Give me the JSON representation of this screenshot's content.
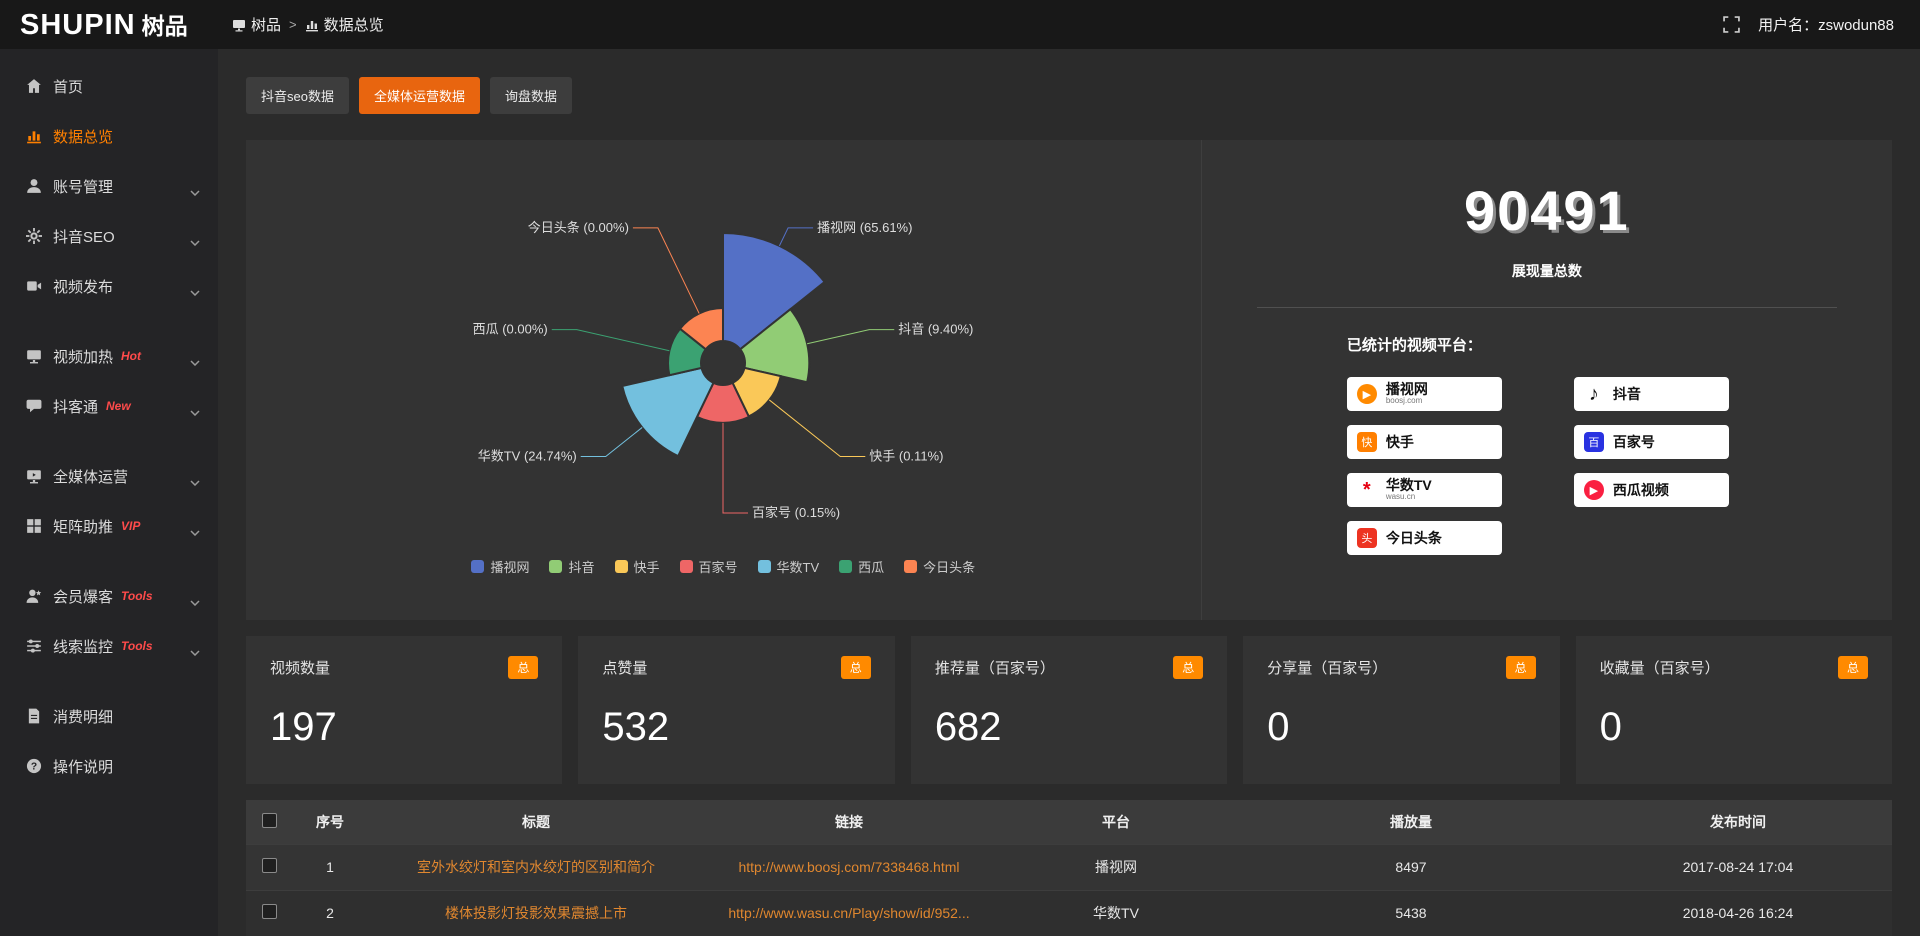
{
  "header": {
    "logo": {
      "latin": "SHUPIN",
      "cjk": "树品"
    },
    "breadcrumb": {
      "root": "树品",
      "separator": ">",
      "current": "数据总览"
    },
    "username": "用户名：zswodun88"
  },
  "sidebar": {
    "items": [
      {
        "key": "home",
        "label": "首页",
        "icon": "home-icon",
        "active": false,
        "chevron": false,
        "tag": "",
        "group_start": false
      },
      {
        "key": "data-overview",
        "label": "数据总览",
        "icon": "chart-icon",
        "active": true,
        "chevron": false,
        "tag": "",
        "group_start": false
      },
      {
        "key": "account-mgmt",
        "label": "账号管理",
        "icon": "user-icon",
        "active": false,
        "chevron": true,
        "tag": "",
        "group_start": false
      },
      {
        "key": "douyin-seo",
        "label": "抖音SEO",
        "icon": "gear-icon",
        "active": false,
        "chevron": true,
        "tag": "",
        "group_start": false
      },
      {
        "key": "video-publish",
        "label": "视频发布",
        "icon": "video-icon",
        "active": false,
        "chevron": true,
        "tag": "",
        "group_start": false
      },
      {
        "key": "video-heat",
        "label": "视频加热",
        "icon": "monitor-icon",
        "active": false,
        "chevron": true,
        "tag": "Hot",
        "group_start": true
      },
      {
        "key": "douketong",
        "label": "抖客通",
        "icon": "chat-icon",
        "active": false,
        "chevron": true,
        "tag": "New",
        "group_start": false
      },
      {
        "key": "all-media-ops",
        "label": "全媒体运营",
        "icon": "screen-icon",
        "active": false,
        "chevron": true,
        "tag": "",
        "group_start": true
      },
      {
        "key": "matrix-boost",
        "label": "矩阵助推",
        "icon": "grid-icon",
        "active": false,
        "chevron": true,
        "tag": "VIP",
        "group_start": false
      },
      {
        "key": "member-burst",
        "label": "会员爆客",
        "icon": "member-icon",
        "active": false,
        "chevron": true,
        "tag": "Tools",
        "group_start": true
      },
      {
        "key": "lead-monitor",
        "label": "线索监控",
        "icon": "filter-icon",
        "active": false,
        "chevron": true,
        "tag": "Tools",
        "group_start": false
      },
      {
        "key": "spend-detail",
        "label": "消费明细",
        "icon": "doc-icon",
        "active": false,
        "chevron": false,
        "tag": "",
        "group_start": true
      },
      {
        "key": "instructions",
        "label": "操作说明",
        "icon": "question-icon",
        "active": false,
        "chevron": false,
        "tag": "",
        "group_start": false
      }
    ]
  },
  "tabs": [
    {
      "key": "douyin-seo-data",
      "label": "抖音seo数据",
      "active": false
    },
    {
      "key": "all-media-data",
      "label": "全媒体运营数据",
      "active": true
    },
    {
      "key": "inquiry-data",
      "label": "询盘数据",
      "active": false
    }
  ],
  "chart_data": {
    "type": "pie",
    "subtype": "rose-donut",
    "title": "",
    "legend_position": "bottom",
    "items": [
      {
        "name": "播视网",
        "percent": 65.61,
        "color": "#5470c6"
      },
      {
        "name": "抖音",
        "percent": 9.4,
        "color": "#91cc75"
      },
      {
        "name": "快手",
        "percent": 0.11,
        "color": "#fac858"
      },
      {
        "name": "百家号",
        "percent": 0.15,
        "color": "#ee6666"
      },
      {
        "name": "华数TV",
        "percent": 24.74,
        "color": "#73c0de"
      },
      {
        "name": "西瓜",
        "percent": 0.0,
        "color": "#3ba272"
      },
      {
        "name": "今日头条",
        "percent": 0.0,
        "color": "#fc8452"
      }
    ]
  },
  "summary": {
    "total_value": "90491",
    "total_label": "展现量总数",
    "platforms_label": "已统计的视频平台：",
    "platform_badges": [
      {
        "name": "播视网",
        "sub": "boosj.com",
        "icon_glyph": "▶",
        "icon_color": "#ff8a00",
        "icon_style": "circle"
      },
      {
        "name": "抖音",
        "sub": "",
        "icon_glyph": "♪",
        "icon_color": "#111111",
        "icon_style": "plain"
      },
      {
        "name": "快手",
        "sub": "",
        "icon_glyph": "快",
        "icon_color": "#ff7f00",
        "icon_style": "square"
      },
      {
        "name": "百家号",
        "sub": "",
        "icon_glyph": "百",
        "icon_color": "#2932e1",
        "icon_style": "square"
      },
      {
        "name": "华数TV",
        "sub": "wasu.cn",
        "icon_glyph": "*",
        "icon_color": "#e60012",
        "icon_style": "plain"
      },
      {
        "name": "西瓜视频",
        "sub": "",
        "icon_glyph": "▶",
        "icon_color": "#fa1f41",
        "icon_style": "circle"
      },
      {
        "name": "今日头条",
        "sub": "",
        "icon_glyph": "头",
        "icon_color": "#ed3321",
        "icon_style": "square"
      }
    ]
  },
  "stat_cards": [
    {
      "title": "视频数量",
      "badge": "总",
      "value": "197"
    },
    {
      "title": "点赞量",
      "badge": "总",
      "value": "532"
    },
    {
      "title": "推荐量（百家号）",
      "badge": "总",
      "value": "682"
    },
    {
      "title": "分享量（百家号）",
      "badge": "总",
      "value": "0"
    },
    {
      "title": "收藏量（百家号）",
      "badge": "总",
      "value": "0"
    }
  ],
  "table": {
    "columns": [
      "序号",
      "标题",
      "链接",
      "平台",
      "播放量",
      "发布时间"
    ],
    "rows": [
      {
        "index": "1",
        "title": "室外水绞灯和室内水绞灯的区别和简介",
        "link": "http://www.boosj.com/7338468.html",
        "platform": "播视网",
        "plays": "8497",
        "time": "2017-08-24 17:04"
      },
      {
        "index": "2",
        "title": "楼体投影灯投影效果震撼上市",
        "link": "http://www.wasu.cn/Play/show/id/952...",
        "platform": "华数TV",
        "plays": "5438",
        "time": "2018-04-26 16:24"
      },
      {
        "index": "",
        "title": "",
        "link": "",
        "platform": "",
        "plays": "",
        "time": ""
      }
    ]
  },
  "colors": {
    "accent": "#e8650f",
    "badge_orange": "#ff8a00",
    "link_orange": "#e0872f",
    "sidebar_active": "#ff8000"
  }
}
